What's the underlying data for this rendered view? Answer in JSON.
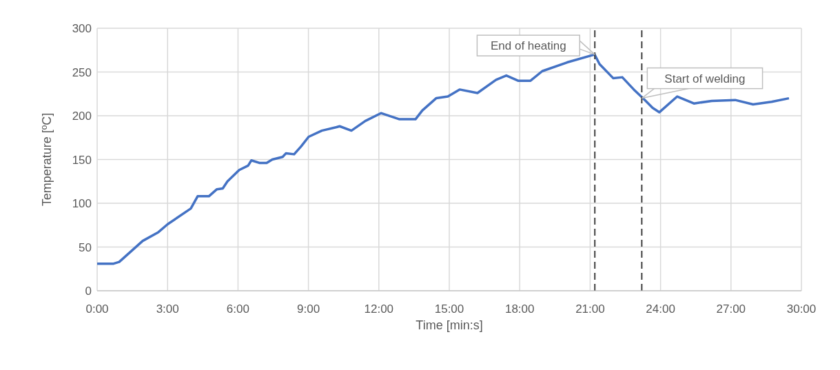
{
  "chart_data": {
    "type": "line",
    "xlabel": "Time [min:s]",
    "ylabel": "Temperature [ºC]",
    "x": [
      0,
      0.7,
      0.94,
      1.94,
      2.61,
      3.0,
      3.99,
      4.28,
      4.76,
      5.1,
      5.35,
      5.55,
      6.05,
      6.43,
      6.57,
      6.93,
      7.22,
      7.46,
      7.9,
      8.04,
      8.39,
      8.69,
      9.01,
      9.57,
      10.2,
      10.33,
      10.83,
      11.42,
      12.09,
      12.88,
      13.56,
      13.85,
      14.44,
      14.94,
      15.44,
      16.2,
      16.99,
      17.43,
      17.93,
      18.46,
      18.96,
      20.02,
      21.19,
      21.4,
      21.98,
      22.37,
      22.86,
      23.25,
      23.66,
      23.95,
      24.71,
      25.42,
      26.18,
      27.18,
      27.94,
      28.73,
      29.47
    ],
    "series": [
      {
        "color": "#4472c4",
        "values": [
          31,
          31,
          33,
          57,
          67,
          76,
          94,
          108,
          108,
          116,
          117,
          125,
          138,
          143,
          149,
          146,
          146,
          150,
          153,
          157,
          156,
          165,
          176,
          183,
          187,
          188,
          183,
          194,
          203,
          196,
          196,
          206,
          220,
          222,
          230,
          226,
          241,
          246,
          240,
          240,
          251,
          261,
          270,
          259,
          243,
          244,
          230,
          220,
          209,
          204,
          222,
          214,
          217,
          218,
          213,
          216,
          220
        ]
      }
    ],
    "xlim": [
      0,
      30
    ],
    "xticks": [
      {
        "value": 0,
        "label": "0:00"
      },
      {
        "value": 3,
        "label": "3:00"
      },
      {
        "value": 6,
        "label": "6:00"
      },
      {
        "value": 9,
        "label": "9:00"
      },
      {
        "value": 12,
        "label": "12:00"
      },
      {
        "value": 15,
        "label": "15:00"
      },
      {
        "value": 18,
        "label": "18:00"
      },
      {
        "value": 21,
        "label": "21:00"
      },
      {
        "value": 24,
        "label": "24:00"
      },
      {
        "value": 27,
        "label": "27:00"
      },
      {
        "value": 30,
        "label": "30:00"
      }
    ],
    "ylim": [
      0,
      300
    ],
    "yticks": [
      0,
      50,
      100,
      150,
      200,
      250,
      300
    ],
    "grid": true,
    "marker": "none",
    "line_style": "solid",
    "ref_lines": [
      {
        "axis": "x",
        "value": 21.2,
        "color": "#404040",
        "line_style": "dashed"
      },
      {
        "axis": "x",
        "value": 23.2,
        "color": "#404040",
        "line_style": "dashed"
      }
    ],
    "annotations": [
      {
        "text": "End of heating",
        "x": 21.2,
        "y": 270
      },
      {
        "text": "Start of welding",
        "x": 23.2,
        "y": 220
      }
    ]
  }
}
